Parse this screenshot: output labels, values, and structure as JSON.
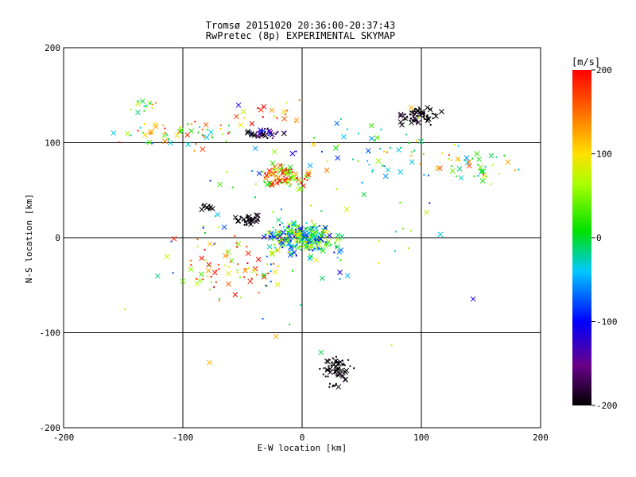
{
  "chart_data": {
    "type": "scatter",
    "title": "Tromsø 20151020 20:36:00-20:37:43",
    "subtitle": "RwPretec (8p) EXPERIMENTAL SKYMAP",
    "xlabel": "E-W location [km]",
    "ylabel": "N-S location [km]",
    "xlim": [
      -200,
      200
    ],
    "ylim": [
      -200,
      200
    ],
    "xticks": [
      "-200",
      "-100",
      "0",
      "100",
      "200"
    ],
    "yticks": [
      "-200",
      "-100",
      "0",
      "100",
      "200"
    ],
    "grid": true,
    "colorbar": {
      "title": "[m/s]",
      "range": [
        -200,
        200
      ],
      "ticks": [
        "200",
        "100",
        "0",
        "-100",
        "-200"
      ],
      "colormap": "black-purple-blue-cyan-green-yellow-red"
    },
    "clusters": [
      {
        "x": 100,
        "y": 128,
        "spread_x": 12,
        "spread_y": 8,
        "velocity": -200,
        "count": 70
      },
      {
        "x": 28,
        "y": -140,
        "spread_x": 10,
        "spread_y": 12,
        "velocity": -200,
        "count": 70
      },
      {
        "x": -30,
        "y": 110,
        "spread_x": 12,
        "spread_y": 4,
        "velocity": -190,
        "count": 45
      },
      {
        "x": -15,
        "y": 65,
        "spread_x": 14,
        "spread_y": 10,
        "velocity": 130,
        "count": 110
      },
      {
        "x": 0,
        "y": 0,
        "spread_x": 22,
        "spread_y": 12,
        "velocity": 0,
        "count": 320
      },
      {
        "x": -45,
        "y": 18,
        "spread_x": 8,
        "spread_y": 6,
        "velocity": -200,
        "count": 35
      },
      {
        "x": -80,
        "y": 32,
        "spread_x": 4,
        "spread_y": 3,
        "velocity": -200,
        "count": 14
      },
      {
        "x": -100,
        "y": 110,
        "spread_x": 40,
        "spread_y": 12,
        "velocity": 80,
        "count": 60
      },
      {
        "x": -60,
        "y": -30,
        "spread_x": 40,
        "spread_y": 25,
        "velocity": 160,
        "count": 70
      },
      {
        "x": 140,
        "y": 75,
        "spread_x": 28,
        "spread_y": 15,
        "velocity": 60,
        "count": 45
      },
      {
        "x": -130,
        "y": 138,
        "spread_x": 10,
        "spread_y": 6,
        "velocity": 40,
        "count": 14
      },
      {
        "x": 60,
        "y": 90,
        "spread_x": 45,
        "spread_y": 30,
        "velocity": 30,
        "count": 50
      },
      {
        "x": -20,
        "y": 130,
        "spread_x": 30,
        "spread_y": 15,
        "velocity": 150,
        "count": 20
      },
      {
        "x": 0,
        "y": 0,
        "spread_x": 110,
        "spread_y": 90,
        "velocity": 0,
        "count": 90
      }
    ]
  }
}
